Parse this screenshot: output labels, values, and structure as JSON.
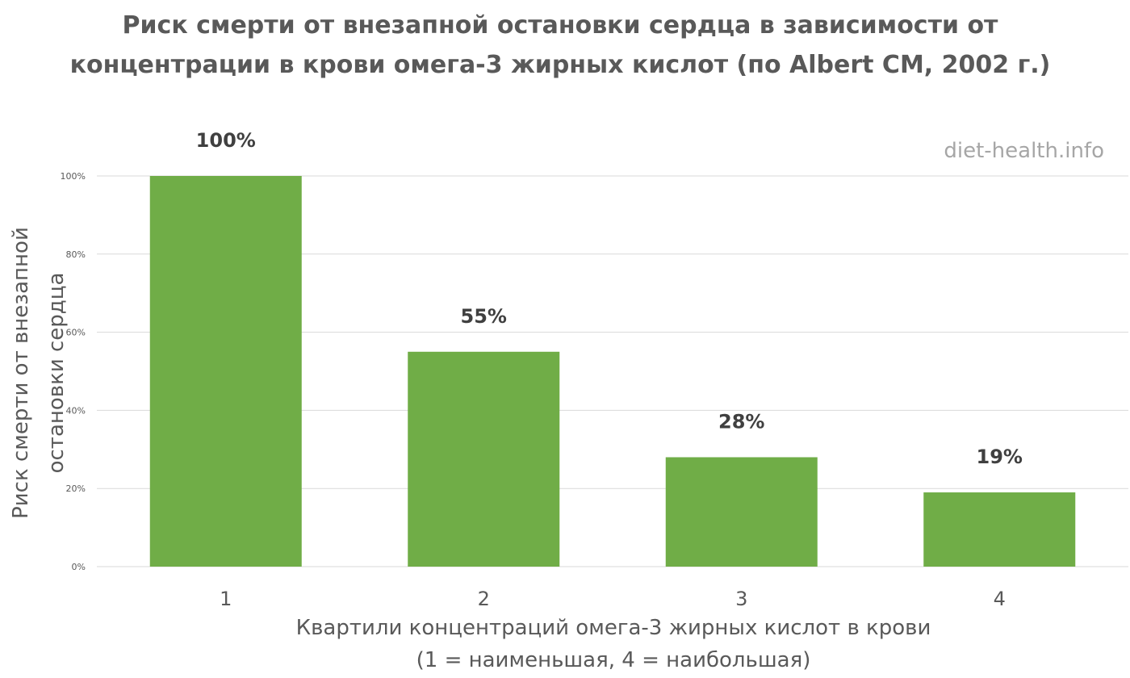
{
  "chart_data": {
    "type": "bar",
    "title_lines": [
      "Риск смерти от внезапной остановки сердца в зависимости от",
      "концентрации в крови омега-3 жирных кислот (по Albert CM, 2002 г.)"
    ],
    "watermark": "diet-health.info",
    "ylabel_lines": [
      "Риск смерти от внезапной",
      "остановки сердца"
    ],
    "xlabel_lines": [
      "Квартили концентраций омега-3 жирных кислот в крови",
      "(1 = наименьшая, 4 = наибольшая)"
    ],
    "categories": [
      "1",
      "2",
      "3",
      "4"
    ],
    "values": [
      100,
      55,
      28,
      19
    ],
    "data_labels": [
      "100%",
      "55%",
      "28%",
      "19%"
    ],
    "ylim": [
      0,
      100
    ],
    "yticks": [
      0,
      20,
      40,
      60,
      80,
      100
    ],
    "ytick_labels": [
      "0%",
      "20%",
      "40%",
      "60%",
      "80%",
      "100%"
    ],
    "grid": true,
    "bar_color": "#70ad47",
    "gridline_color": "#d9d9d9",
    "text_color": "#595959",
    "tick_label_color": "#595959",
    "data_label_color": "#404040"
  }
}
